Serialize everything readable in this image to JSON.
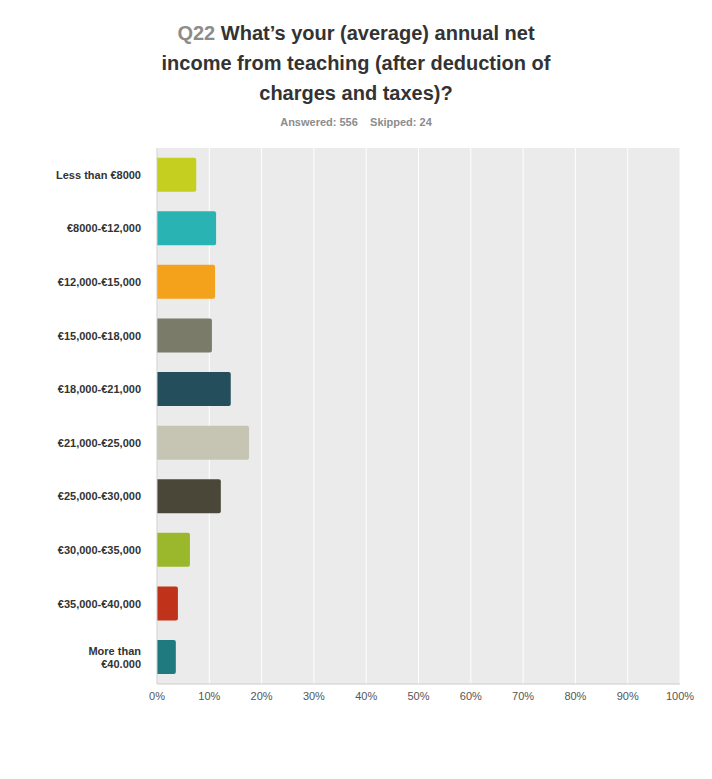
{
  "chart_data": {
    "type": "bar",
    "orientation": "horizontal",
    "title": "Q22 What’s your (average) annual net income from teaching (after deduction of charges and taxes)?",
    "subtitle": "Answered: 556    Skipped: 24",
    "categories": [
      "Less than €8000",
      "€8000-€12,000",
      "€12,000-€15,000",
      "€15,000-€18,000",
      "€18,000-€21,000",
      "€21,000-€25,000",
      "€25,000-€30,000",
      "€30,000-€35,000",
      "€35,000-€40,000",
      "More than €40.000"
    ],
    "values": [
      7.5,
      11.3,
      11.1,
      10.5,
      14.1,
      17.6,
      12.2,
      6.3,
      4.0,
      3.6
    ],
    "colors": [
      "#c5cf1f",
      "#2ab3b3",
      "#f4a11c",
      "#7a7b68",
      "#254e5c",
      "#c6c5b3",
      "#4a4739",
      "#9bb82c",
      "#c0321a",
      "#1f7a80"
    ],
    "xlim": [
      0,
      100
    ],
    "xticks": [
      {
        "value": 0,
        "label": "0%"
      },
      {
        "value": 10,
        "label": "10%"
      },
      {
        "value": 20,
        "label": "20%"
      },
      {
        "value": 30,
        "label": "30%"
      },
      {
        "value": 40,
        "label": "40%"
      },
      {
        "value": 50,
        "label": "50%"
      },
      {
        "value": 60,
        "label": "60%"
      },
      {
        "value": 70,
        "label": "70%"
      },
      {
        "value": 80,
        "label": "80%"
      },
      {
        "value": 90,
        "label": "90%"
      },
      {
        "value": 100,
        "label": "100%"
      }
    ],
    "grid": true
  }
}
